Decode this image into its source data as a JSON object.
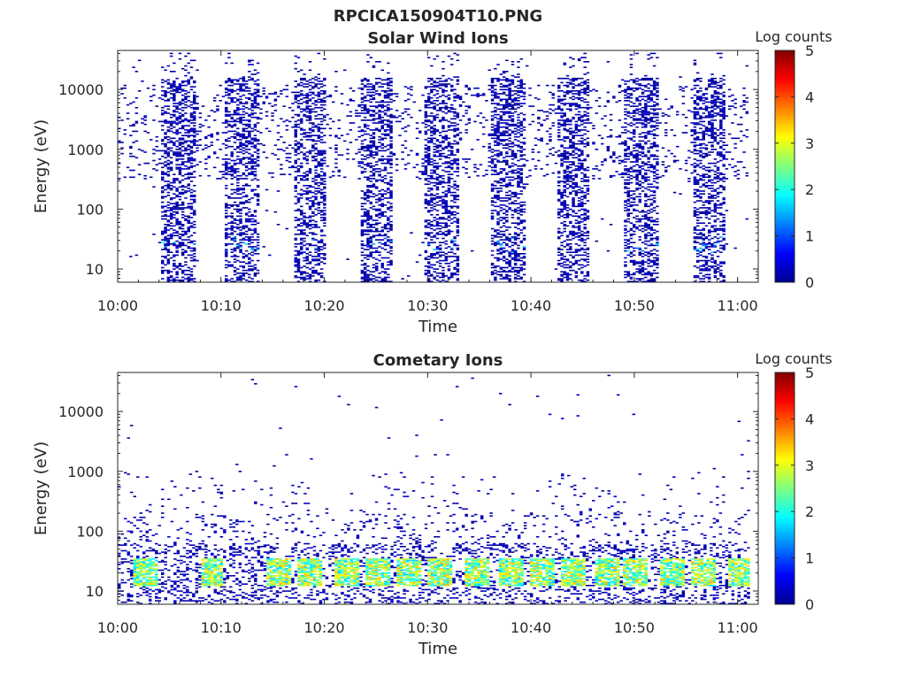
{
  "figure_title": "RPCICA150904T10.PNG",
  "chart_data": [
    {
      "type": "heatmap",
      "title": "Solar Wind Ions",
      "xlabel": "Time",
      "ylabel": "Energy (eV)",
      "x_ticks": [
        "10:00",
        "10:10",
        "10:20",
        "10:30",
        "10:40",
        "10:50",
        "11:00"
      ],
      "x_range_minutes": [
        0,
        62
      ],
      "y_scale": "log",
      "y_ticks": [
        {
          "value": 10,
          "label": "10"
        },
        {
          "value": 100,
          "label": "100"
        },
        {
          "value": 1000,
          "label": "1000"
        },
        {
          "value": 10000,
          "label": "10000"
        }
      ],
      "y_range": [
        6,
        45000
      ],
      "colorbar": {
        "label": "Log counts",
        "range": [
          0,
          5
        ],
        "ticks": [
          "0",
          "1",
          "2",
          "3",
          "4",
          "5"
        ],
        "colormap": "jet"
      },
      "bursts_start_minutes": [
        4.0,
        10.3,
        16.8,
        23.3,
        29.5,
        36.0,
        42.3,
        48.8,
        55.5
      ],
      "burst_duration_minutes": 3.3,
      "background": "sparse counts 300–12000 eV between bursts",
      "peak_log_counts": 1.9,
      "peak_energy_eV": 25
    },
    {
      "type": "heatmap",
      "title": "Cometary Ions",
      "xlabel": "Time",
      "ylabel": "Energy (eV)",
      "x_ticks": [
        "10:00",
        "10:10",
        "10:20",
        "10:30",
        "10:40",
        "10:50",
        "11:00"
      ],
      "x_range_minutes": [
        0,
        62
      ],
      "y_scale": "log",
      "y_ticks": [
        {
          "value": 10,
          "label": "10"
        },
        {
          "value": 100,
          "label": "100"
        },
        {
          "value": 1000,
          "label": "1000"
        },
        {
          "value": 10000,
          "label": "10000"
        }
      ],
      "y_range": [
        6,
        45000
      ],
      "colorbar": {
        "label": "Log counts",
        "range": [
          0,
          5
        ],
        "ticks": [
          "0",
          "1",
          "2",
          "3",
          "4",
          "5"
        ],
        "colormap": "jet"
      },
      "hotspots_minutes": [
        2.5,
        9.0,
        15.5,
        18.5,
        22.0,
        25.0,
        28.0,
        31.0,
        34.8,
        38.0,
        41.0,
        44.0,
        47.2,
        50.0,
        53.5,
        56.5,
        60.0
      ],
      "hotspot_energy_eV": [
        12,
        35
      ],
      "peak_log_counts": 3.5,
      "background": "sparse counts up to ~1000 eV"
    }
  ]
}
